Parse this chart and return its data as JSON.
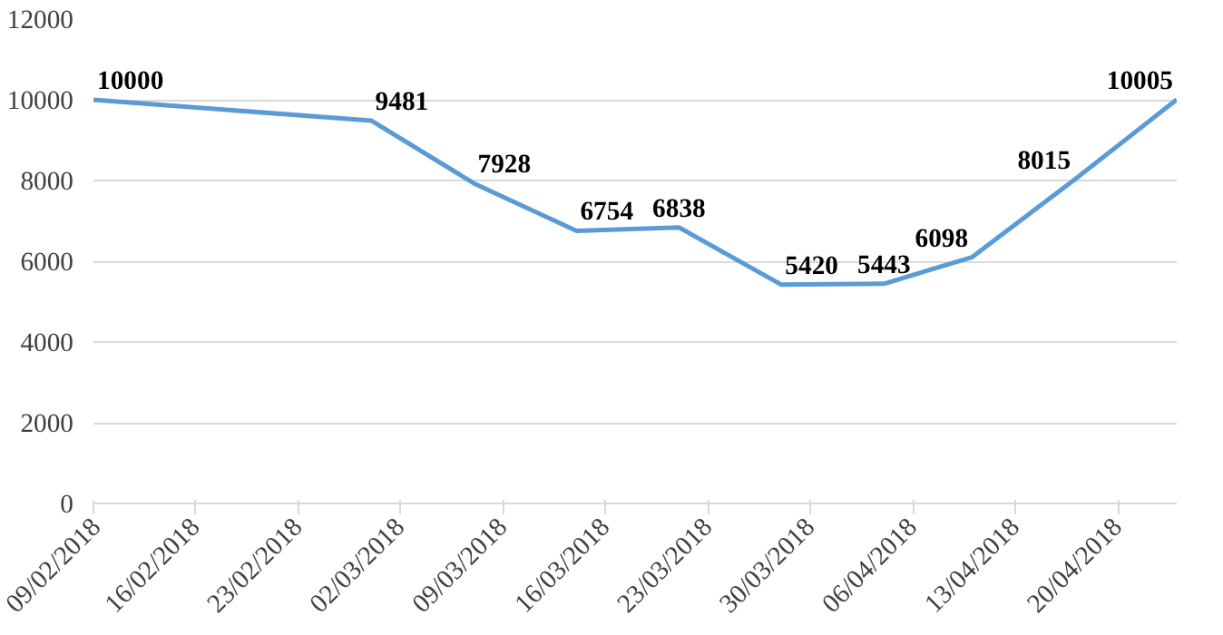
{
  "chart_data": {
    "type": "line",
    "x": [
      "2018-02-09",
      "2018-02-28",
      "2018-03-07",
      "2018-03-14",
      "2018-03-21",
      "2018-03-28",
      "2018-04-04",
      "2018-04-10",
      "2018-04-17",
      "2018-04-24"
    ],
    "series": [
      {
        "color": "#5b9bd5",
        "values": [
          10000,
          9481,
          7928,
          6754,
          6838,
          5420,
          5443,
          6098,
          8015,
          10005
        ]
      }
    ],
    "data_labels": true,
    "xlim": [
      "2018-02-09",
      "2018-04-24"
    ],
    "xticks": [
      {
        "value": "2018-02-09",
        "label": "09/02/2018"
      },
      {
        "value": "2018-02-16",
        "label": "16/02/2018"
      },
      {
        "value": "2018-02-23",
        "label": "23/02/2018"
      },
      {
        "value": "2018-03-02",
        "label": "02/03/2018"
      },
      {
        "value": "2018-03-09",
        "label": "09/03/2018"
      },
      {
        "value": "2018-03-16",
        "label": "16/03/2018"
      },
      {
        "value": "2018-03-23",
        "label": "23/03/2018"
      },
      {
        "value": "2018-03-30",
        "label": "30/03/2018"
      },
      {
        "value": "2018-04-06",
        "label": "06/04/2018"
      },
      {
        "value": "2018-04-13",
        "label": "13/04/2018"
      },
      {
        "value": "2018-04-20",
        "label": "20/04/2018"
      }
    ],
    "ylim": [
      0,
      12000
    ],
    "yticks": [
      0,
      2000,
      4000,
      6000,
      8000,
      10000,
      12000
    ],
    "grid": "y",
    "marker": "none",
    "line_style": "solid"
  }
}
